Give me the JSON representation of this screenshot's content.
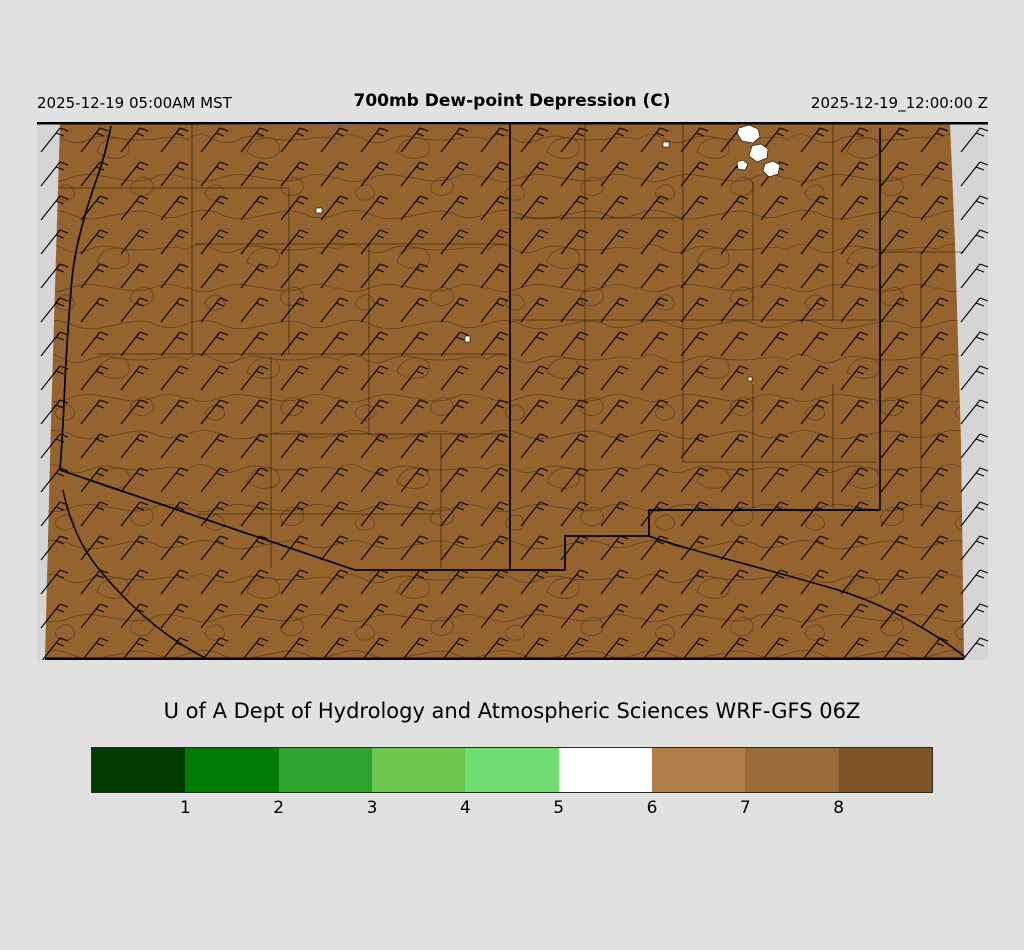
{
  "header": {
    "time_local": "2025-12-19 05:00AM MST",
    "title": "700mb Dew-point Depression (C)",
    "time_utc": "2025-12-19_12:00:00 Z"
  },
  "map": {
    "description": "700mb dew-point depression filled field with wind barbs over Arizona and New Mexico",
    "regions": [
      "Arizona",
      "New Mexico"
    ],
    "field_color": "#95632e",
    "margin_color": "#d5d5d5",
    "boundary_color": "#000000",
    "moist_patch_color": "#ffffff"
  },
  "footer": {
    "credit": "U of A Dept of Hydrology and Atmospheric Sciences WRF-GFS 06Z"
  },
  "colorbar": {
    "tick_labels": [
      "1",
      "2",
      "3",
      "4",
      "5",
      "6",
      "7",
      "8"
    ],
    "segments": [
      {
        "color": "#003e00"
      },
      {
        "color": "#007c00"
      },
      {
        "color": "#2fa32f"
      },
      {
        "color": "#6cc44e"
      },
      {
        "color": "#6fdd6f"
      },
      {
        "color": "#ffffff"
      },
      {
        "color": "#b37d49"
      },
      {
        "color": "#9a6a38"
      },
      {
        "color": "#7c5427"
      }
    ]
  }
}
